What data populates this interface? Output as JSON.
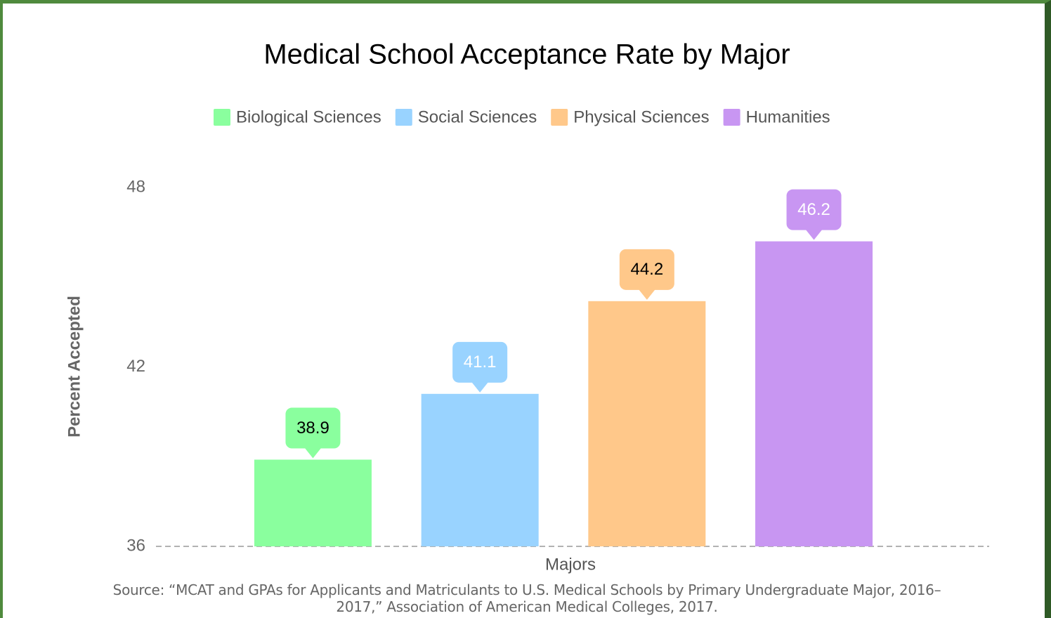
{
  "chart_data": {
    "type": "bar",
    "title": "Medical School Acceptance Rate by Major",
    "x_label": "Majors",
    "y_label": "Percent Accepted",
    "categories": [
      null
    ],
    "series": [
      {
        "name": "Biological Sciences",
        "color": "#8aff9e",
        "label_color": "#000000",
        "values": [
          38.9
        ]
      },
      {
        "name": "Social Sciences",
        "color": "#99d3ff",
        "label_color": "#ffffff",
        "values": [
          41.1
        ]
      },
      {
        "name": "Physical Sciences",
        "color": "#ffc88a",
        "label_color": "#000000",
        "values": [
          44.2
        ]
      },
      {
        "name": "Humanities",
        "color": "#c896f2",
        "label_color": "#ffffff",
        "values": [
          46.2
        ]
      }
    ],
    "ylim": [
      36,
      48
    ],
    "yticks": [
      36,
      42,
      48
    ],
    "grid": false,
    "legend": "top",
    "source": "Source:  “MCAT and GPAs for Applicants and Matriculants to U.S. Medical Schools by Primary Undergraduate Major, 2016–2017,”  Association of American Medical Colleges, 2017."
  }
}
